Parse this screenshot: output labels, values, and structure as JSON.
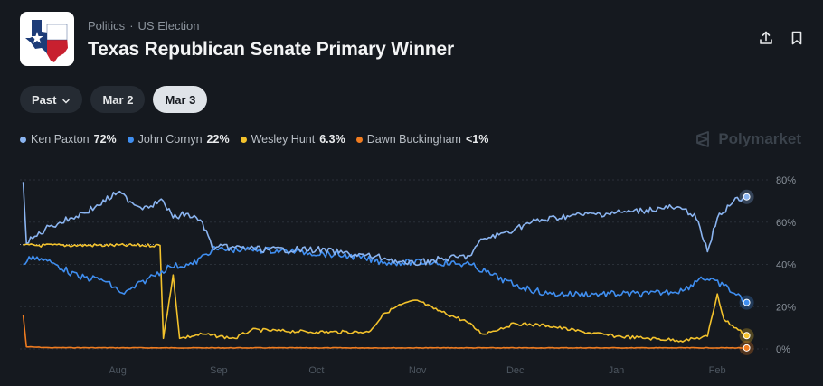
{
  "header": {
    "category": "Politics",
    "subcategory": "US Election",
    "title": "Texas Republican Senate Primary Winner"
  },
  "filters": [
    {
      "label": "Past",
      "dropdown": true,
      "active": false
    },
    {
      "label": "Mar 2",
      "dropdown": false,
      "active": false
    },
    {
      "label": "Mar 3",
      "dropdown": false,
      "active": true
    }
  ],
  "icons": {
    "share": "share-icon",
    "bookmark": "bookmark-icon",
    "brand": "polymarket-logo-icon"
  },
  "brand": {
    "name": "Polymarket"
  },
  "colors": {
    "background": "#15191f",
    "paxton": "#8ab4f0",
    "cornyn": "#3f8ef0",
    "hunt": "#f3c22c",
    "buckingham": "#f07c20"
  },
  "chart_data": {
    "type": "line",
    "ylim": [
      0,
      80
    ],
    "yticks": [
      "0%",
      "20%",
      "40%",
      "60%",
      "80%"
    ],
    "ytick_values": [
      0,
      20,
      40,
      60,
      80
    ],
    "xlim": [
      "2025-07-16",
      "2026-02-28"
    ],
    "xticks": [
      {
        "label": "Aug",
        "date": "2025-08-15"
      },
      {
        "label": "Sep",
        "date": "2025-09-15"
      },
      {
        "label": "Oct",
        "date": "2025-10-15"
      },
      {
        "label": "Nov",
        "date": "2025-11-15"
      },
      {
        "label": "Dec",
        "date": "2025-12-15"
      },
      {
        "label": "Jan",
        "date": "2026-01-15"
      },
      {
        "label": "Feb",
        "date": "2026-02-15"
      }
    ],
    "series": [
      {
        "name": "Ken Paxton",
        "legend_value": "72%",
        "color": "#8ab4f0",
        "points": [
          [
            "2025-07-17",
            79
          ],
          [
            "2025-07-18",
            50
          ],
          [
            "2025-07-25",
            58
          ],
          [
            "2025-08-01",
            62
          ],
          [
            "2025-08-08",
            67
          ],
          [
            "2025-08-15",
            74
          ],
          [
            "2025-08-22",
            67
          ],
          [
            "2025-08-29",
            70
          ],
          [
            "2025-09-01",
            62
          ],
          [
            "2025-09-05",
            64
          ],
          [
            "2025-09-10",
            60
          ],
          [
            "2025-09-13",
            48
          ],
          [
            "2025-09-20",
            48
          ],
          [
            "2025-09-30",
            47
          ],
          [
            "2025-10-15",
            47
          ],
          [
            "2025-10-25",
            45
          ],
          [
            "2025-11-05",
            43
          ],
          [
            "2025-11-12",
            40
          ],
          [
            "2025-11-20",
            42
          ],
          [
            "2025-12-01",
            44
          ],
          [
            "2025-12-05",
            52
          ],
          [
            "2025-12-10",
            54
          ],
          [
            "2025-12-15",
            57
          ],
          [
            "2025-12-20",
            60
          ],
          [
            "2025-12-31",
            63
          ],
          [
            "2026-01-10",
            64
          ],
          [
            "2026-01-20",
            65
          ],
          [
            "2026-02-01",
            67
          ],
          [
            "2026-02-08",
            64
          ],
          [
            "2026-02-12",
            46
          ],
          [
            "2026-02-15",
            62
          ],
          [
            "2026-02-20",
            70
          ],
          [
            "2026-02-24",
            72
          ]
        ]
      },
      {
        "name": "John Cornyn",
        "legend_value": "22%",
        "color": "#3f8ef0",
        "points": [
          [
            "2025-07-17",
            40
          ],
          [
            "2025-07-20",
            44
          ],
          [
            "2025-07-27",
            40
          ],
          [
            "2025-08-03",
            34
          ],
          [
            "2025-08-10",
            33
          ],
          [
            "2025-08-17",
            26
          ],
          [
            "2025-08-24",
            33
          ],
          [
            "2025-08-31",
            39
          ],
          [
            "2025-09-07",
            40
          ],
          [
            "2025-09-13",
            47
          ],
          [
            "2025-09-25",
            47
          ],
          [
            "2025-10-10",
            46
          ],
          [
            "2025-10-25",
            44
          ],
          [
            "2025-11-05",
            41
          ],
          [
            "2025-11-20",
            41
          ],
          [
            "2025-12-01",
            40
          ],
          [
            "2025-12-08",
            35
          ],
          [
            "2025-12-15",
            30
          ],
          [
            "2025-12-25",
            26
          ],
          [
            "2026-01-10",
            26
          ],
          [
            "2026-01-25",
            26
          ],
          [
            "2026-02-05",
            28
          ],
          [
            "2026-02-10",
            34
          ],
          [
            "2026-02-17",
            30
          ],
          [
            "2026-02-24",
            22
          ]
        ]
      },
      {
        "name": "Wesley Hunt",
        "legend_value": "6.3%",
        "color": "#f3c22c",
        "points": [
          [
            "2025-07-17",
            49
          ],
          [
            "2025-08-28",
            49
          ],
          [
            "2025-08-29",
            5
          ],
          [
            "2025-09-01",
            35
          ],
          [
            "2025-09-03",
            5
          ],
          [
            "2025-09-10",
            7
          ],
          [
            "2025-09-20",
            5
          ],
          [
            "2025-09-25",
            9
          ],
          [
            "2025-10-15",
            8
          ],
          [
            "2025-10-31",
            8
          ],
          [
            "2025-11-05",
            17
          ],
          [
            "2025-11-10",
            21
          ],
          [
            "2025-11-15",
            23
          ],
          [
            "2025-11-20",
            19
          ],
          [
            "2025-11-30",
            13
          ],
          [
            "2025-12-05",
            7
          ],
          [
            "2025-12-15",
            12
          ],
          [
            "2025-12-25",
            11
          ],
          [
            "2026-01-05",
            8
          ],
          [
            "2026-01-15",
            6
          ],
          [
            "2026-01-25",
            5
          ],
          [
            "2026-02-05",
            4
          ],
          [
            "2026-02-12",
            6
          ],
          [
            "2026-02-15",
            26
          ],
          [
            "2026-02-17",
            14
          ],
          [
            "2026-02-24",
            6.3
          ]
        ]
      },
      {
        "name": "Dawn Buckingham",
        "legend_value": "<1%",
        "color": "#f07c20",
        "points": [
          [
            "2025-07-17",
            16
          ],
          [
            "2025-07-18",
            1
          ],
          [
            "2025-07-25",
            0.6
          ],
          [
            "2025-09-01",
            0.5
          ],
          [
            "2025-10-15",
            0.5
          ],
          [
            "2025-12-01",
            0.5
          ],
          [
            "2026-01-15",
            0.5
          ],
          [
            "2026-02-24",
            0.5
          ]
        ]
      }
    ]
  }
}
